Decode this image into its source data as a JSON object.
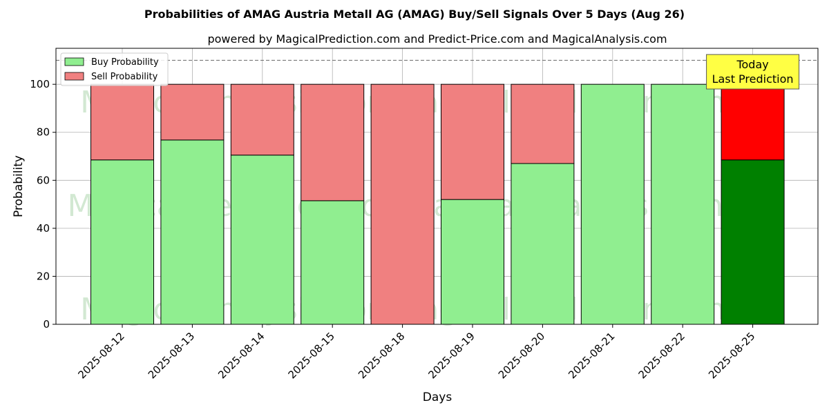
{
  "chart_data": {
    "type": "bar",
    "stacked": true,
    "title": "Probabilities of AMAG Austria Metall AG (AMAG) Buy/Sell Signals Over 5 Days (Aug 26)",
    "subtitle": "powered by MagicalPrediction.com and Predict-Price.com and MagicalAnalysis.com",
    "xlabel": "Days",
    "ylabel": "Probability",
    "ylim": [
      0,
      115
    ],
    "yticks": [
      0,
      20,
      40,
      60,
      80,
      100
    ],
    "grid": true,
    "legend_position": "top-left",
    "reference_line": 110,
    "categories": [
      "2025-08-12",
      "2025-08-13",
      "2025-08-14",
      "2025-08-15",
      "2025-08-18",
      "2025-08-19",
      "2025-08-20",
      "2025-08-21",
      "2025-08-22",
      "2025-08-25"
    ],
    "series": [
      {
        "name": "Buy Probability",
        "color": "#90ee90",
        "highlight_color": "#008000",
        "values": [
          68.5,
          76.8,
          70.5,
          51.5,
          0,
          52,
          67,
          100,
          100,
          68.5
        ]
      },
      {
        "name": "Sell Probability",
        "color": "#f08080",
        "highlight_color": "#ff0000",
        "values": [
          31.5,
          23.2,
          29.5,
          48.5,
          100,
          48,
          33,
          0,
          0,
          31.5
        ]
      }
    ],
    "annotation": {
      "lines": [
        "Today",
        "Last Prediction"
      ],
      "color": "#ffff44"
    },
    "watermarks": [
      "MagicalAnalysis.com",
      "MagicalPrediction.com"
    ]
  }
}
